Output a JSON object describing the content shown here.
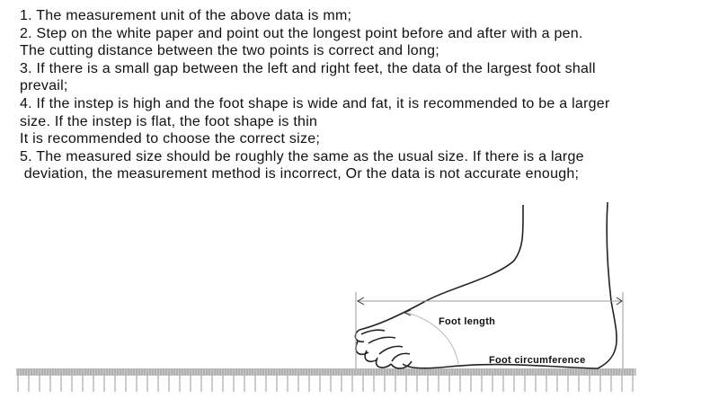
{
  "instructions": [
    "1. The measurement unit of the above data is mm;",
    "2. Step on the white paper and point out the longest point before and after with a pen.",
    "The cutting distance between the two points is correct and long;",
    "3. If there is a small gap between the left and right feet, the data of the largest foot shall",
    "prevail;",
    "4. If the instep is high and the foot shape is wide and fat, it is recommended to be a larger",
    "size. If the instep is flat, the foot shape is thin",
    "It is recommended to choose the correct size;",
    "5. The measured size should be roughly the same as the usual size. If there is a large",
    " deviation, the measurement method is incorrect, Or the data is not accurate enough;"
  ],
  "diagram": {
    "foot_length_label": "Foot length",
    "foot_circumference_label": "Foot circumference"
  }
}
